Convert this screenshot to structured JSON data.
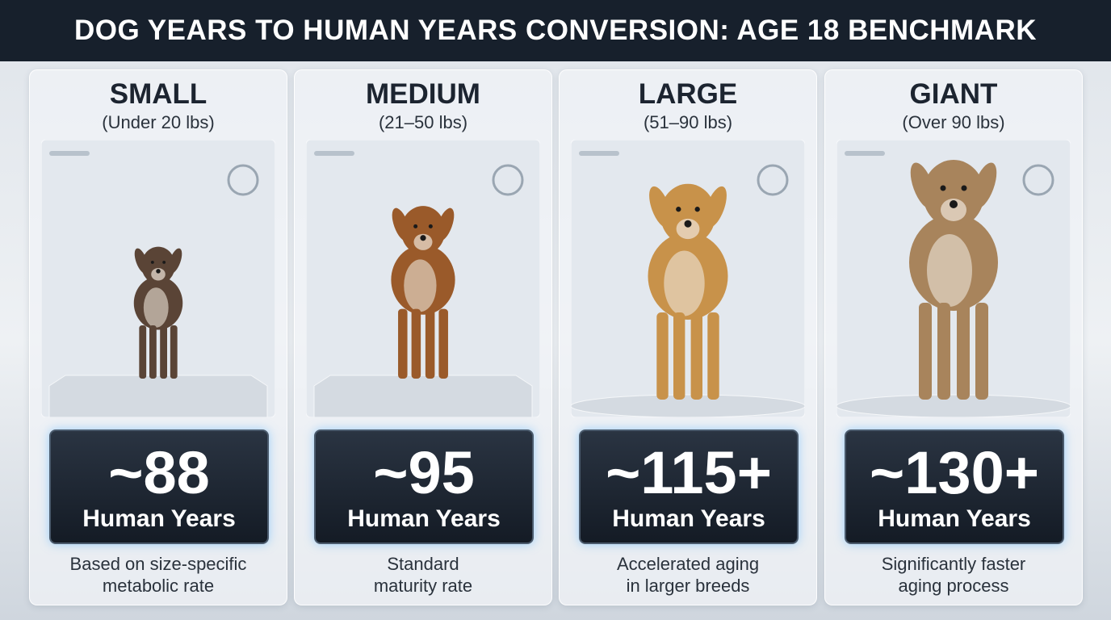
{
  "header": {
    "title": "DOG YEARS TO HUMAN YEARS CONVERSION: AGE 18 BENCHMARK"
  },
  "cards": [
    {
      "name": "SMALL",
      "weight": "(Under 20 lbs)",
      "value": "~88",
      "unit": "Human Years",
      "description": [
        "Based on size-specific",
        "metabolic rate"
      ]
    },
    {
      "name": "MEDIUM",
      "weight": "(21–50 lbs)",
      "value": "~95",
      "unit": "Human Years",
      "description": [
        "Standard",
        "maturity rate"
      ]
    },
    {
      "name": "LARGE",
      "weight": "(51–90 lbs)",
      "value": "~115+",
      "unit": "Human Years",
      "description": [
        "Accelerated aging",
        "in larger breeds"
      ]
    },
    {
      "name": "GIANT",
      "weight": "(Over 90 lbs)",
      "value": "~130+",
      "unit": "Human Years",
      "description": [
        "Significantly faster",
        "aging process"
      ]
    }
  ]
}
